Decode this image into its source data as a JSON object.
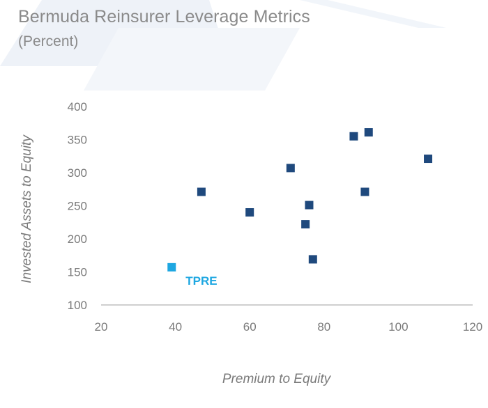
{
  "header": {
    "title": "Bermuda Reinsurer Leverage Metrics",
    "subtitle": "(Percent)"
  },
  "colors": {
    "series": "#1f497d",
    "highlight": "#1ea7e1",
    "axis": "#bfbfbf",
    "text": "#7a7a7a",
    "background_shape": "#eef2f8"
  },
  "chart_data": {
    "type": "scatter",
    "title": "Bermuda Reinsurer Leverage Metrics",
    "subtitle": "(Percent)",
    "xlabel": "Premium to Equity",
    "ylabel": "Invested Assets to Equity",
    "xlim": [
      20,
      120
    ],
    "ylim": [
      100,
      400
    ],
    "xticks": [
      20,
      40,
      60,
      80,
      100,
      120
    ],
    "yticks": [
      100,
      150,
      200,
      250,
      300,
      350,
      400
    ],
    "grid": false,
    "marker": "square",
    "series": [
      {
        "points": [
          {
            "x": 47,
            "y": 271
          },
          {
            "x": 60,
            "y": 240
          },
          {
            "x": 71,
            "y": 307
          },
          {
            "x": 75,
            "y": 222
          },
          {
            "x": 76,
            "y": 251
          },
          {
            "x": 77,
            "y": 169
          },
          {
            "x": 88,
            "y": 355
          },
          {
            "x": 91,
            "y": 271
          },
          {
            "x": 92,
            "y": 361
          },
          {
            "x": 108,
            "y": 321
          }
        ]
      }
    ],
    "annotations": [
      {
        "x": 39,
        "y": 157,
        "label": "TPRE"
      }
    ]
  }
}
